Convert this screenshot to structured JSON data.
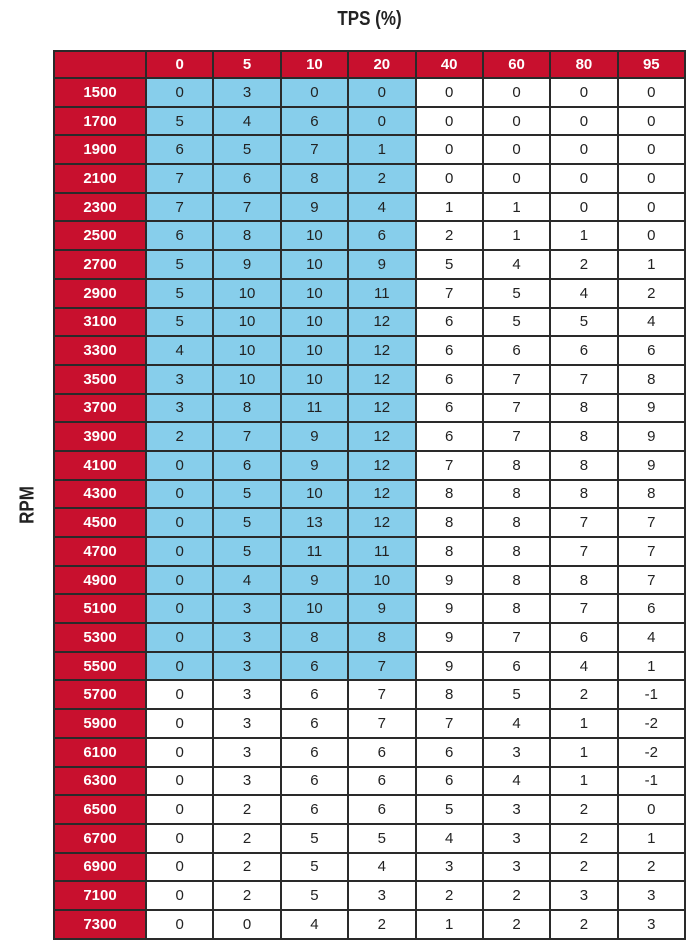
{
  "chart_data": {
    "type": "table",
    "title": "TPS (%)",
    "row_label": "RPM",
    "columns": [
      "0",
      "5",
      "10",
      "20",
      "40",
      "60",
      "80",
      "95"
    ],
    "colors": {
      "header": "#c8102e",
      "highlight": "#87ceeb",
      "cell": "#ffffff"
    },
    "highlight": {
      "columns": [
        "0",
        "5",
        "10",
        "20"
      ],
      "rpm_range": [
        1500,
        5500
      ]
    },
    "rows": [
      {
        "rpm": "1500",
        "values": [
          0,
          3,
          0,
          0,
          0,
          0,
          0,
          0
        ]
      },
      {
        "rpm": "1700",
        "values": [
          5,
          4,
          6,
          0,
          0,
          0,
          0,
          0
        ]
      },
      {
        "rpm": "1900",
        "values": [
          6,
          5,
          7,
          1,
          0,
          0,
          0,
          0
        ]
      },
      {
        "rpm": "2100",
        "values": [
          7,
          6,
          8,
          2,
          0,
          0,
          0,
          0
        ]
      },
      {
        "rpm": "2300",
        "values": [
          7,
          7,
          9,
          4,
          1,
          1,
          0,
          0
        ]
      },
      {
        "rpm": "2500",
        "values": [
          6,
          8,
          10,
          6,
          2,
          1,
          1,
          0
        ]
      },
      {
        "rpm": "2700",
        "values": [
          5,
          9,
          10,
          9,
          5,
          4,
          2,
          1
        ]
      },
      {
        "rpm": "2900",
        "values": [
          5,
          10,
          10,
          11,
          7,
          5,
          4,
          2
        ]
      },
      {
        "rpm": "3100",
        "values": [
          5,
          10,
          10,
          12,
          6,
          5,
          5,
          4
        ]
      },
      {
        "rpm": "3300",
        "values": [
          4,
          10,
          10,
          12,
          6,
          6,
          6,
          6
        ]
      },
      {
        "rpm": "3500",
        "values": [
          3,
          10,
          10,
          12,
          6,
          7,
          7,
          8
        ]
      },
      {
        "rpm": "3700",
        "values": [
          3,
          8,
          11,
          12,
          6,
          7,
          8,
          9
        ]
      },
      {
        "rpm": "3900",
        "values": [
          2,
          7,
          9,
          12,
          6,
          7,
          8,
          9
        ]
      },
      {
        "rpm": "4100",
        "values": [
          0,
          6,
          9,
          12,
          7,
          8,
          8,
          9
        ]
      },
      {
        "rpm": "4300",
        "values": [
          0,
          5,
          10,
          12,
          8,
          8,
          8,
          8
        ]
      },
      {
        "rpm": "4500",
        "values": [
          0,
          5,
          13,
          12,
          8,
          8,
          7,
          7
        ]
      },
      {
        "rpm": "4700",
        "values": [
          0,
          5,
          11,
          11,
          8,
          8,
          7,
          7
        ]
      },
      {
        "rpm": "4900",
        "values": [
          0,
          4,
          9,
          10,
          9,
          8,
          8,
          7
        ]
      },
      {
        "rpm": "5100",
        "values": [
          0,
          3,
          10,
          9,
          9,
          8,
          7,
          6
        ]
      },
      {
        "rpm": "5300",
        "values": [
          0,
          3,
          8,
          8,
          9,
          7,
          6,
          4
        ]
      },
      {
        "rpm": "5500",
        "values": [
          0,
          3,
          6,
          7,
          9,
          6,
          4,
          1
        ]
      },
      {
        "rpm": "5700",
        "values": [
          0,
          3,
          6,
          7,
          8,
          5,
          2,
          -1
        ]
      },
      {
        "rpm": "5900",
        "values": [
          0,
          3,
          6,
          7,
          7,
          4,
          1,
          -2
        ]
      },
      {
        "rpm": "6100",
        "values": [
          0,
          3,
          6,
          6,
          6,
          3,
          1,
          -2
        ]
      },
      {
        "rpm": "6300",
        "values": [
          0,
          3,
          6,
          6,
          6,
          4,
          1,
          -1
        ]
      },
      {
        "rpm": "6500",
        "values": [
          0,
          2,
          6,
          6,
          5,
          3,
          2,
          0
        ]
      },
      {
        "rpm": "6700",
        "values": [
          0,
          2,
          5,
          5,
          4,
          3,
          2,
          1
        ]
      },
      {
        "rpm": "6900",
        "values": [
          0,
          2,
          5,
          4,
          3,
          3,
          2,
          2
        ]
      },
      {
        "rpm": "7100",
        "values": [
          0,
          2,
          5,
          3,
          2,
          2,
          3,
          3
        ]
      },
      {
        "rpm": "7300",
        "values": [
          0,
          0,
          4,
          2,
          1,
          2,
          2,
          3
        ]
      }
    ]
  }
}
